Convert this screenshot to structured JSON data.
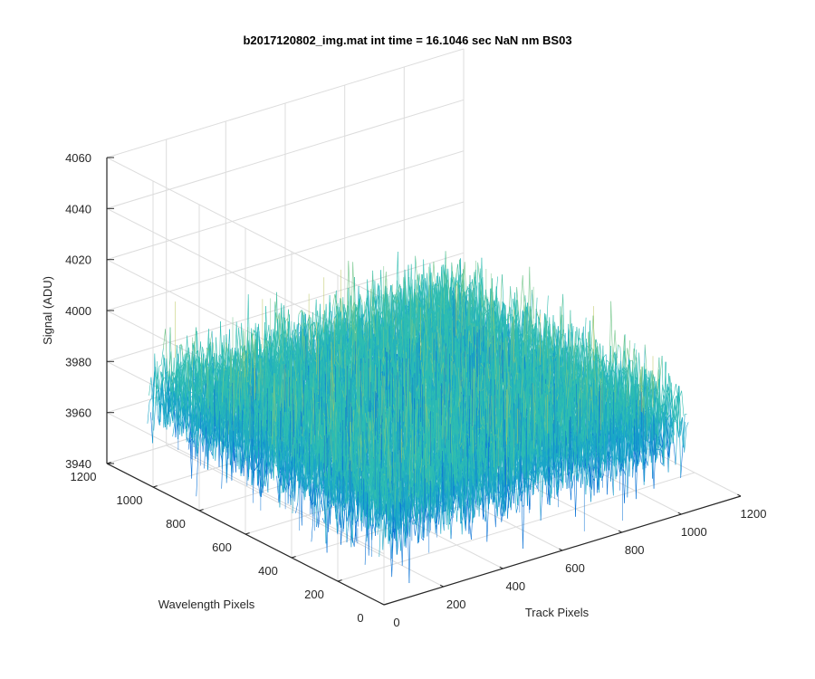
{
  "chart_data": {
    "type": "surface",
    "title": "b2017120802_img.mat int time = 16.1046 sec  NaN nm BS03",
    "xlabel": "Track Pixels",
    "ylabel": "Wavelength Pixels",
    "zlabel": "Signal (ADU)",
    "x_ticks": [
      0,
      200,
      400,
      600,
      800,
      1000,
      1200
    ],
    "y_ticks": [
      0,
      200,
      400,
      600,
      800,
      1000,
      1200
    ],
    "z_ticks": [
      3940,
      3960,
      3980,
      4000,
      4020,
      4040,
      4060
    ],
    "xlim": [
      0,
      1200
    ],
    "ylim": [
      0,
      1200
    ],
    "zlim": [
      3940,
      4060
    ],
    "data_extent": {
      "x": [
        0,
        1024
      ],
      "y": [
        0,
        1024
      ]
    },
    "z_mean": 3976,
    "z_noise_range": [
      3945,
      4020
    ],
    "grid": true,
    "colormap": [
      "#0b73d6",
      "#1aa6c8",
      "#2fbdb0",
      "#73c68a",
      "#b9c45a"
    ]
  }
}
